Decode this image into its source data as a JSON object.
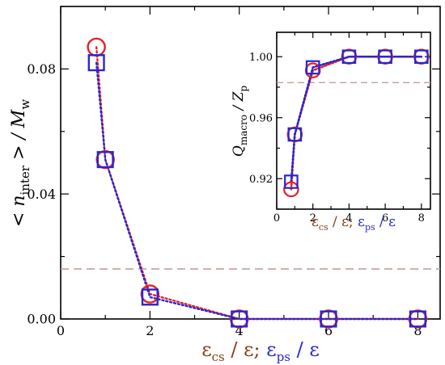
{
  "chart_data": [
    {
      "type": "scatter",
      "ylabel_main": "< n",
      "ylabel_sub": "inter",
      "ylabel_mid": " > / M",
      "ylabel_sub2": "w",
      "xlabel_parts": {
        "eps1": "ε",
        "sub1": "cs",
        "slash1": " / ε; ",
        "eps2": "ε",
        "sub2": "ps",
        "slash2": " / ε"
      },
      "xlim": [
        0,
        8.5
      ],
      "ylim": [
        0,
        0.1
      ],
      "x_ticks": [
        0,
        2,
        4,
        6,
        8
      ],
      "x_tick_labels": [
        "0",
        "2",
        "4",
        "6",
        "8"
      ],
      "y_ticks": [
        0,
        0.04,
        0.08
      ],
      "y_tick_labels": [
        "0.00",
        "0.04",
        "0.08"
      ],
      "reference_line": 0.016,
      "series": [
        {
          "marker": "circle",
          "color": "#e8202a",
          "x": [
            0.8,
            1.0,
            2.0,
            4.0,
            6.0,
            8.0
          ],
          "y": [
            0.087,
            0.051,
            0.008,
            0.0,
            0.0,
            0.0
          ]
        },
        {
          "marker": "square",
          "color": "#2727cc",
          "x": [
            0.8,
            1.0,
            2.0,
            4.0,
            6.0,
            8.0
          ],
          "y": [
            0.082,
            0.051,
            0.007,
            0.0,
            0.0,
            0.0
          ]
        }
      ]
    },
    {
      "type": "scatter",
      "inset": true,
      "ylabel_parts": {
        "q": "Q",
        "qsub": "macro",
        "mid": " / Z",
        "zsub": "p"
      },
      "xlabel_parts": {
        "eps1": "ε",
        "sub1": "cs",
        "slash1": " / ε; ",
        "eps2": "ε",
        "sub2": "ps",
        "slash2": " / ε"
      },
      "xlim": [
        0,
        8.5
      ],
      "ylim": [
        0.9,
        1.016
      ],
      "x_ticks": [
        0,
        2,
        4,
        6,
        8
      ],
      "x_tick_labels": [
        "0",
        "2",
        "4",
        "6",
        "8"
      ],
      "y_ticks": [
        0.92,
        0.96,
        1.0
      ],
      "y_tick_labels": [
        "0.92",
        "0.96",
        "1.00"
      ],
      "reference_line": 0.983,
      "series": [
        {
          "marker": "circle",
          "color": "#e8202a",
          "x": [
            0.8,
            1.0,
            2.0,
            4.0,
            6.0,
            8.0
          ],
          "y": [
            0.913,
            0.949,
            0.991,
            1.0,
            1.0,
            1.0
          ]
        },
        {
          "marker": "square",
          "color": "#2727cc",
          "x": [
            0.8,
            1.0,
            2.0,
            4.0,
            6.0,
            8.0
          ],
          "y": [
            0.918,
            0.949,
            0.993,
            1.0,
            1.0,
            1.0
          ]
        }
      ]
    }
  ],
  "colors": {
    "axis": "#000000",
    "reference": "#c89b9b",
    "brown_eps": "#8a3b12",
    "blue_eps": "#2727cc"
  }
}
